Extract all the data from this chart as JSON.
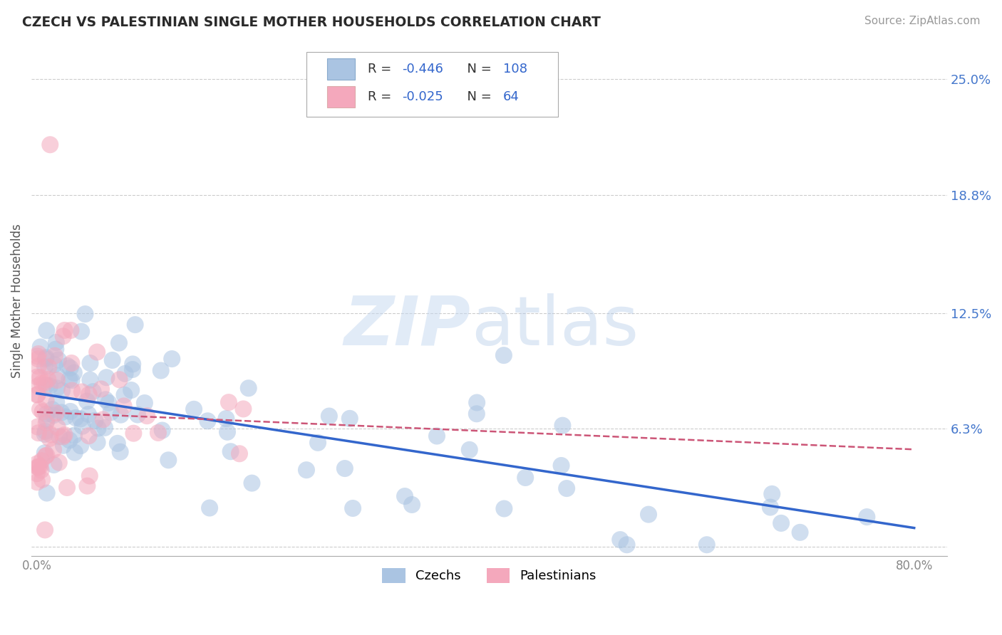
{
  "title": "CZECH VS PALESTINIAN SINGLE MOTHER HOUSEHOLDS CORRELATION CHART",
  "source": "Source: ZipAtlas.com",
  "ylabel": "Single Mother Households",
  "ytick_vals": [
    0.0,
    0.063,
    0.125,
    0.188,
    0.25
  ],
  "ytick_labels": [
    "",
    "6.3%",
    "12.5%",
    "18.8%",
    "25.0%"
  ],
  "xtick_vals": [
    0.0,
    0.8
  ],
  "xtick_labels": [
    "0.0%",
    "80.0%"
  ],
  "xlim": [
    -0.005,
    0.83
  ],
  "ylim": [
    -0.005,
    0.268
  ],
  "czech_color": "#aac4e2",
  "czech_edge": "#aac4e2",
  "pal_color": "#f4a8bc",
  "pal_edge": "#f4a8bc",
  "trend_czech_color": "#3366cc",
  "trend_pal_color": "#cc5577",
  "czech_R": -0.446,
  "czech_N": 108,
  "pal_R": -0.025,
  "pal_N": 64,
  "label_czech": "Czechs",
  "label_pal": "Palestinians",
  "watermark_zip": "ZIP",
  "watermark_atlas": "atlas",
  "bg_color": "#ffffff",
  "grid_color": "#cccccc",
  "title_color": "#2a2a2a",
  "ylabel_color": "#555555",
  "tick_label_color": "#4477cc",
  "source_color": "#999999",
  "legend_text_color": "#333333",
  "legend_value_color": "#3366cc"
}
